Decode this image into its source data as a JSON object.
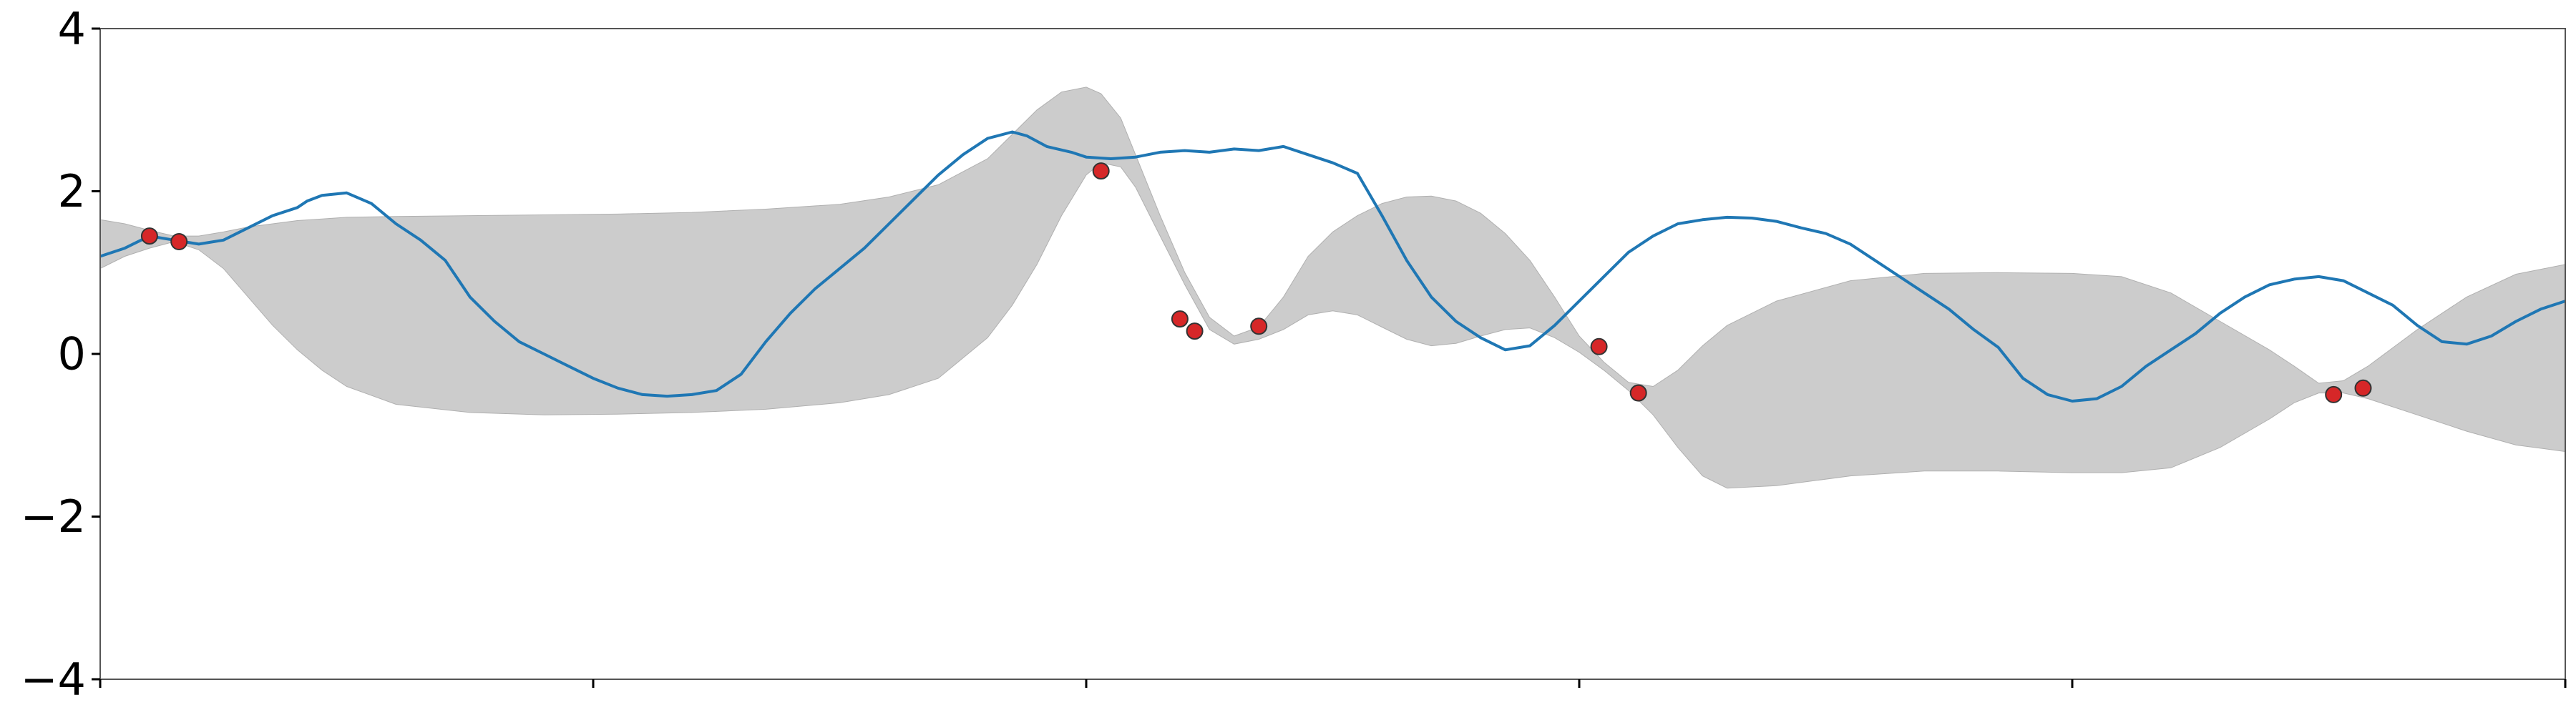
{
  "chart_data": {
    "type": "line",
    "title": "",
    "xlabel": "",
    "ylabel": "",
    "xlim": [
      0,
      5
    ],
    "ylim": [
      -4,
      4
    ],
    "y_ticks": [
      {
        "value": 4,
        "label": "4"
      },
      {
        "value": 2,
        "label": "2"
      },
      {
        "value": 0,
        "label": "0"
      },
      {
        "value": -2,
        "label": "−2"
      },
      {
        "value": -4,
        "label": "−4"
      }
    ],
    "x_ticks": [
      {
        "value": 0,
        "label": ""
      },
      {
        "value": 1,
        "label": ""
      },
      {
        "value": 2,
        "label": ""
      },
      {
        "value": 3,
        "label": ""
      },
      {
        "value": 4,
        "label": ""
      },
      {
        "value": 5,
        "label": ""
      }
    ],
    "grid": false,
    "band": {
      "color": "#cccccc",
      "points": [
        [
          0.0,
          1.05,
          1.65
        ],
        [
          0.05,
          1.2,
          1.6
        ],
        [
          0.1,
          1.3,
          1.52
        ],
        [
          0.15,
          1.38,
          1.45
        ],
        [
          0.2,
          1.28,
          1.45
        ],
        [
          0.25,
          1.05,
          1.5
        ],
        [
          0.3,
          0.7,
          1.56
        ],
        [
          0.35,
          0.35,
          1.6
        ],
        [
          0.4,
          0.05,
          1.64
        ],
        [
          0.45,
          -0.2,
          1.66
        ],
        [
          0.5,
          -0.4,
          1.68
        ],
        [
          0.6,
          -0.62,
          1.69
        ],
        [
          0.75,
          -0.72,
          1.7
        ],
        [
          0.9,
          -0.75,
          1.71
        ],
        [
          1.05,
          -0.74,
          1.72
        ],
        [
          1.2,
          -0.72,
          1.74
        ],
        [
          1.35,
          -0.68,
          1.78
        ],
        [
          1.5,
          -0.6,
          1.84
        ],
        [
          1.6,
          -0.5,
          1.93
        ],
        [
          1.7,
          -0.3,
          2.08
        ],
        [
          1.8,
          0.2,
          2.4
        ],
        [
          1.85,
          0.6,
          2.7
        ],
        [
          1.9,
          1.1,
          3.0
        ],
        [
          1.95,
          1.7,
          3.22
        ],
        [
          2.0,
          2.2,
          3.28
        ],
        [
          2.03,
          2.35,
          3.2
        ],
        [
          2.07,
          2.3,
          2.9
        ],
        [
          2.1,
          2.05,
          2.45
        ],
        [
          2.15,
          1.45,
          1.7
        ],
        [
          2.2,
          0.85,
          1.0
        ],
        [
          2.25,
          0.3,
          0.45
        ],
        [
          2.3,
          0.12,
          0.22
        ],
        [
          2.35,
          0.18,
          0.33
        ],
        [
          2.4,
          0.3,
          0.7
        ],
        [
          2.45,
          0.48,
          1.2
        ],
        [
          2.5,
          0.53,
          1.5
        ],
        [
          2.55,
          0.48,
          1.7
        ],
        [
          2.6,
          0.33,
          1.85
        ],
        [
          2.65,
          0.18,
          1.93
        ],
        [
          2.7,
          0.1,
          1.94
        ],
        [
          2.75,
          0.13,
          1.88
        ],
        [
          2.8,
          0.22,
          1.73
        ],
        [
          2.85,
          0.3,
          1.48
        ],
        [
          2.9,
          0.32,
          1.15
        ],
        [
          2.95,
          0.2,
          0.7
        ],
        [
          3.0,
          0.02,
          0.22
        ],
        [
          3.05,
          -0.2,
          -0.1
        ],
        [
          3.1,
          -0.45,
          -0.35
        ],
        [
          3.15,
          -0.75,
          -0.4
        ],
        [
          3.2,
          -1.15,
          -0.2
        ],
        [
          3.25,
          -1.5,
          0.1
        ],
        [
          3.3,
          -1.65,
          0.35
        ],
        [
          3.4,
          -1.62,
          0.65
        ],
        [
          3.55,
          -1.5,
          0.9
        ],
        [
          3.7,
          -1.44,
          0.99
        ],
        [
          3.85,
          -1.44,
          1.0
        ],
        [
          4.0,
          -1.46,
          0.99
        ],
        [
          4.1,
          -1.46,
          0.95
        ],
        [
          4.2,
          -1.4,
          0.75
        ],
        [
          4.3,
          -1.15,
          0.4
        ],
        [
          4.4,
          -0.8,
          0.05
        ],
        [
          4.45,
          -0.6,
          -0.15
        ],
        [
          4.5,
          -0.48,
          -0.36
        ],
        [
          4.55,
          -0.48,
          -0.33
        ],
        [
          4.6,
          -0.55,
          -0.15
        ],
        [
          4.7,
          -0.75,
          0.3
        ],
        [
          4.8,
          -0.95,
          0.7
        ],
        [
          4.9,
          -1.12,
          0.98
        ],
        [
          5.0,
          -1.2,
          1.1
        ]
      ]
    },
    "series": [
      {
        "color": "#1f77b4",
        "points": [
          [
            0.0,
            1.2
          ],
          [
            0.05,
            1.3
          ],
          [
            0.1,
            1.45
          ],
          [
            0.15,
            1.4
          ],
          [
            0.2,
            1.35
          ],
          [
            0.25,
            1.4
          ],
          [
            0.3,
            1.55
          ],
          [
            0.35,
            1.7
          ],
          [
            0.4,
            1.8
          ],
          [
            0.42,
            1.88
          ],
          [
            0.45,
            1.95
          ],
          [
            0.5,
            1.98
          ],
          [
            0.55,
            1.85
          ],
          [
            0.6,
            1.6
          ],
          [
            0.65,
            1.4
          ],
          [
            0.7,
            1.15
          ],
          [
            0.75,
            0.7
          ],
          [
            0.8,
            0.4
          ],
          [
            0.85,
            0.15
          ],
          [
            0.9,
            0.0
          ],
          [
            0.95,
            -0.15
          ],
          [
            1.0,
            -0.3
          ],
          [
            1.05,
            -0.42
          ],
          [
            1.1,
            -0.5
          ],
          [
            1.15,
            -0.52
          ],
          [
            1.2,
            -0.5
          ],
          [
            1.25,
            -0.45
          ],
          [
            1.3,
            -0.25
          ],
          [
            1.35,
            0.15
          ],
          [
            1.4,
            0.5
          ],
          [
            1.45,
            0.8
          ],
          [
            1.5,
            1.05
          ],
          [
            1.55,
            1.3
          ],
          [
            1.6,
            1.6
          ],
          [
            1.65,
            1.9
          ],
          [
            1.7,
            2.2
          ],
          [
            1.75,
            2.45
          ],
          [
            1.8,
            2.65
          ],
          [
            1.85,
            2.73
          ],
          [
            1.88,
            2.68
          ],
          [
            1.92,
            2.55
          ],
          [
            1.97,
            2.48
          ],
          [
            2.0,
            2.42
          ],
          [
            2.05,
            2.4
          ],
          [
            2.1,
            2.42
          ],
          [
            2.15,
            2.48
          ],
          [
            2.2,
            2.5
          ],
          [
            2.25,
            2.48
          ],
          [
            2.3,
            2.52
          ],
          [
            2.35,
            2.5
          ],
          [
            2.4,
            2.55
          ],
          [
            2.45,
            2.45
          ],
          [
            2.5,
            2.35
          ],
          [
            2.55,
            2.22
          ],
          [
            2.6,
            1.7
          ],
          [
            2.65,
            1.15
          ],
          [
            2.7,
            0.7
          ],
          [
            2.75,
            0.4
          ],
          [
            2.8,
            0.2
          ],
          [
            2.85,
            0.05
          ],
          [
            2.9,
            0.1
          ],
          [
            2.95,
            0.35
          ],
          [
            3.0,
            0.65
          ],
          [
            3.05,
            0.95
          ],
          [
            3.1,
            1.25
          ],
          [
            3.15,
            1.45
          ],
          [
            3.2,
            1.6
          ],
          [
            3.25,
            1.65
          ],
          [
            3.3,
            1.68
          ],
          [
            3.35,
            1.67
          ],
          [
            3.4,
            1.63
          ],
          [
            3.45,
            1.55
          ],
          [
            3.5,
            1.48
          ],
          [
            3.55,
            1.35
          ],
          [
            3.6,
            1.15
          ],
          [
            3.65,
            0.95
          ],
          [
            3.7,
            0.75
          ],
          [
            3.75,
            0.55
          ],
          [
            3.8,
            0.3
          ],
          [
            3.85,
            0.08
          ],
          [
            3.9,
            -0.3
          ],
          [
            3.95,
            -0.5
          ],
          [
            4.0,
            -0.58
          ],
          [
            4.05,
            -0.55
          ],
          [
            4.1,
            -0.4
          ],
          [
            4.15,
            -0.15
          ],
          [
            4.2,
            0.05
          ],
          [
            4.25,
            0.25
          ],
          [
            4.3,
            0.5
          ],
          [
            4.35,
            0.7
          ],
          [
            4.4,
            0.85
          ],
          [
            4.45,
            0.92
          ],
          [
            4.5,
            0.95
          ],
          [
            4.55,
            0.9
          ],
          [
            4.6,
            0.75
          ],
          [
            4.65,
            0.6
          ],
          [
            4.7,
            0.35
          ],
          [
            4.75,
            0.15
          ],
          [
            4.8,
            0.12
          ],
          [
            4.85,
            0.22
          ],
          [
            4.9,
            0.4
          ],
          [
            4.95,
            0.55
          ],
          [
            5.0,
            0.65
          ]
        ]
      }
    ],
    "observations": {
      "marker_face": "#d62728",
      "marker_edge": "#333333",
      "points": [
        [
          0.1,
          1.45
        ],
        [
          0.16,
          1.38
        ],
        [
          2.03,
          2.25
        ],
        [
          2.19,
          0.43
        ],
        [
          2.22,
          0.28
        ],
        [
          2.35,
          0.34
        ],
        [
          3.04,
          0.09
        ],
        [
          3.12,
          -0.48
        ],
        [
          4.53,
          -0.5
        ],
        [
          4.59,
          -0.42
        ]
      ]
    }
  }
}
